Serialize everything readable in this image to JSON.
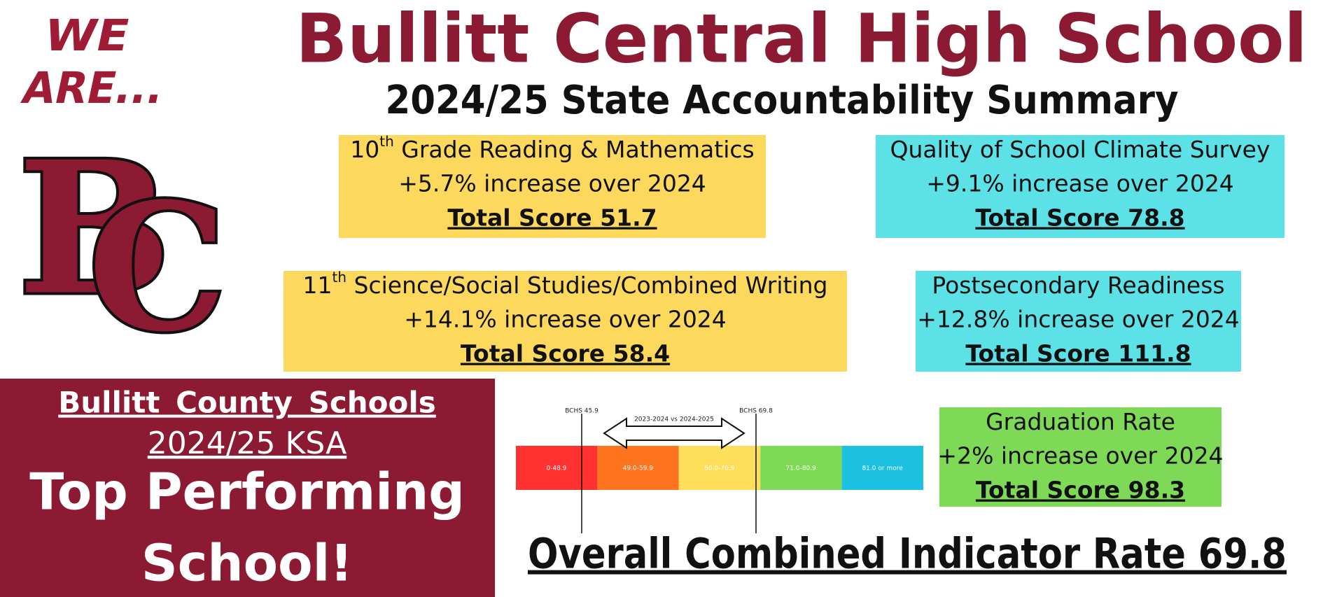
{
  "logo": {
    "line1": "WE",
    "line2": "ARE...",
    "monogram": [
      "B",
      "C"
    ]
  },
  "header": {
    "title": "Bullitt Central High School",
    "subtitle": "2024/25 State Accountability Summary"
  },
  "panels": [
    {
      "heading": {
        "num": "10",
        "sup": "th",
        "rest": " Grade Reading & Mathematics"
      },
      "change": "+5.7% increase over 2024",
      "total": "Total Score 51.7"
    },
    {
      "heading": {
        "rest": "Quality of School Climate Survey"
      },
      "change": "+9.1% increase over 2024",
      "total": "Total Score 78.8"
    },
    {
      "heading": {
        "num": "11",
        "sup": "th",
        "rest": " Science/Social Studies/Combined Writing"
      },
      "change": "+14.1% increase over 2024",
      "total": "Total Score 58.4"
    },
    {
      "heading": {
        "rest": "Postsecondary Readiness"
      },
      "change": "+12.8% increase over 2024",
      "total": "Total Score 111.8"
    },
    {
      "heading": {
        "rest": "Graduation Rate"
      },
      "change": "+2% increase over 2024",
      "total": "Total Score 98.3"
    }
  ],
  "highlight": {
    "district": "Bullitt County Schools",
    "program": "2024/25 KSA",
    "line1": "Top Performing",
    "line2": "School!"
  },
  "scale": {
    "comparison": "2023-2024 vs 2024-2025",
    "markers": [
      "BCHS 45.9",
      "BCHS 69.8"
    ],
    "segments": [
      "0-48.9",
      "49.0-59.9",
      "60.0-70.9",
      "71.0-80.9",
      "81.0 or more"
    ]
  },
  "footer": "Overall Combined Indicator Rate 69.8"
}
